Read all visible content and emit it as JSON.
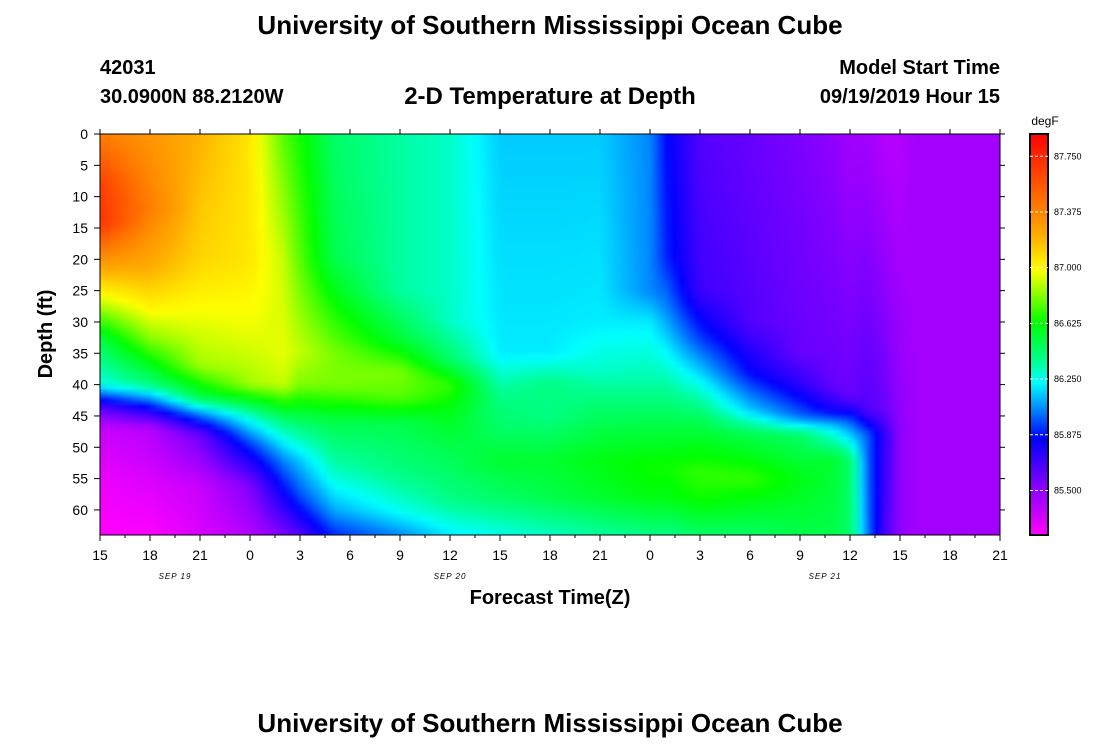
{
  "header": {
    "title": "University of Southern Mississippi Ocean Cube",
    "station_id": "42031",
    "coordinates": "30.0900N 88.2120W",
    "model_start_label": "Model Start Time",
    "model_start_value": "09/19/2019 Hour 15"
  },
  "footer": {
    "title": "University of Southern Mississippi Ocean Cube"
  },
  "chart_data": {
    "type": "heatmap",
    "title": "2-D Temperature at Depth",
    "xlabel": "Forecast Time(Z)",
    "ylabel": "Depth (ft)",
    "x_tick_labels": [
      "15",
      "18",
      "21",
      "0",
      "3",
      "6",
      "9",
      "12",
      "15",
      "18",
      "21",
      "0",
      "3",
      "6",
      "9",
      "12",
      "15",
      "18",
      "21"
    ],
    "x_hours": [
      0,
      3,
      6,
      9,
      12,
      15,
      18,
      21,
      24,
      27,
      30,
      33,
      36,
      39,
      42,
      45,
      48,
      51,
      54
    ],
    "date_labels": [
      {
        "text": "SEP 19",
        "hour": 4.5
      },
      {
        "text": "SEP 20",
        "hour": 21
      },
      {
        "text": "SEP 21",
        "hour": 43.5
      }
    ],
    "y_ticks": [
      0,
      5,
      10,
      15,
      20,
      25,
      30,
      35,
      40,
      45,
      50,
      55,
      60
    ],
    "ylim": [
      0,
      64
    ],
    "colorbar": {
      "unit": "degF",
      "min": 85.2,
      "max": 87.9,
      "tick_values": [
        87.75,
        87.375,
        87.0,
        86.625,
        86.25,
        85.875,
        85.5
      ],
      "tick_labels": [
        "87.750",
        "87.375",
        "87.000",
        "86.625",
        "86.250",
        "85.875",
        "85.500"
      ]
    },
    "columns": [
      {
        "hour": 0,
        "profile": [
          [
            0,
            87.4
          ],
          [
            8,
            87.65
          ],
          [
            14,
            87.7
          ],
          [
            22,
            87.2
          ],
          [
            27,
            86.9
          ],
          [
            33,
            86.5
          ],
          [
            40,
            86.25
          ],
          [
            44,
            85.6
          ],
          [
            47,
            85.35
          ],
          [
            55,
            85.25
          ],
          [
            64,
            85.2
          ]
        ]
      },
      {
        "hour": 3,
        "profile": [
          [
            0,
            87.3
          ],
          [
            12,
            87.4
          ],
          [
            22,
            87.2
          ],
          [
            28,
            87.0
          ],
          [
            33,
            86.8
          ],
          [
            40,
            86.4
          ],
          [
            44,
            85.8
          ],
          [
            47,
            85.4
          ],
          [
            55,
            85.3
          ],
          [
            64,
            85.2
          ]
        ]
      },
      {
        "hour": 6,
        "profile": [
          [
            0,
            87.2
          ],
          [
            20,
            87.1
          ],
          [
            30,
            86.95
          ],
          [
            37,
            86.85
          ],
          [
            42,
            86.5
          ],
          [
            45,
            86.0
          ],
          [
            48,
            85.6
          ],
          [
            56,
            85.35
          ],
          [
            64,
            85.3
          ]
        ]
      },
      {
        "hour": 9,
        "profile": [
          [
            0,
            87.05
          ],
          [
            20,
            87.05
          ],
          [
            32,
            86.95
          ],
          [
            40,
            86.85
          ],
          [
            45,
            86.3
          ],
          [
            50,
            85.9
          ],
          [
            56,
            85.55
          ],
          [
            64,
            85.4
          ]
        ]
      },
      {
        "hour": 11,
        "profile": [
          [
            0,
            86.75
          ],
          [
            20,
            86.9
          ],
          [
            35,
            86.95
          ],
          [
            40,
            86.9
          ],
          [
            46,
            86.4
          ],
          [
            52,
            86.05
          ],
          [
            58,
            85.8
          ],
          [
            64,
            85.55
          ]
        ]
      },
      {
        "hour": 12,
        "profile": [
          [
            0,
            86.65
          ],
          [
            20,
            86.75
          ],
          [
            35,
            86.9
          ],
          [
            40,
            86.8
          ],
          [
            46,
            86.45
          ],
          [
            52,
            86.15
          ],
          [
            58,
            85.95
          ],
          [
            64,
            85.65
          ]
        ]
      },
      {
        "hour": 14,
        "profile": [
          [
            0,
            86.45
          ],
          [
            20,
            86.5
          ],
          [
            35,
            86.8
          ],
          [
            40,
            86.8
          ],
          [
            46,
            86.5
          ],
          [
            54,
            86.3
          ],
          [
            60,
            86.1
          ],
          [
            64,
            85.9
          ]
        ]
      },
      {
        "hour": 18,
        "profile": [
          [
            0,
            86.35
          ],
          [
            25,
            86.35
          ],
          [
            33,
            86.55
          ],
          [
            38,
            86.8
          ],
          [
            42,
            86.75
          ],
          [
            46,
            86.5
          ],
          [
            54,
            86.4
          ],
          [
            60,
            86.25
          ],
          [
            64,
            86.05
          ]
        ]
      },
      {
        "hour": 21,
        "profile": [
          [
            0,
            86.3
          ],
          [
            30,
            86.3
          ],
          [
            36,
            86.45
          ],
          [
            40,
            86.7
          ],
          [
            44,
            86.6
          ],
          [
            50,
            86.5
          ],
          [
            58,
            86.4
          ],
          [
            64,
            86.2
          ]
        ]
      },
      {
        "hour": 24,
        "profile": [
          [
            0,
            86.15
          ],
          [
            35,
            86.2
          ],
          [
            42,
            86.4
          ],
          [
            47,
            86.45
          ],
          [
            52,
            86.55
          ],
          [
            58,
            86.45
          ],
          [
            64,
            86.25
          ]
        ]
      },
      {
        "hour": 27,
        "profile": [
          [
            0,
            86.15
          ],
          [
            35,
            86.2
          ],
          [
            40,
            86.4
          ],
          [
            45,
            86.4
          ],
          [
            52,
            86.55
          ],
          [
            58,
            86.5
          ],
          [
            64,
            86.3
          ]
        ]
      },
      {
        "hour": 30,
        "profile": [
          [
            0,
            86.15
          ],
          [
            30,
            86.2
          ],
          [
            38,
            86.3
          ],
          [
            44,
            86.45
          ],
          [
            52,
            86.6
          ],
          [
            58,
            86.55
          ],
          [
            64,
            86.35
          ]
        ]
      },
      {
        "hour": 33,
        "profile": [
          [
            0,
            86.05
          ],
          [
            25,
            86.05
          ],
          [
            30,
            86.2
          ],
          [
            40,
            86.35
          ],
          [
            46,
            86.5
          ],
          [
            53,
            86.65
          ],
          [
            58,
            86.6
          ],
          [
            64,
            86.4
          ]
        ]
      },
      {
        "hour": 34,
        "profile": [
          [
            0,
            85.85
          ],
          [
            20,
            85.9
          ],
          [
            28,
            86.05
          ],
          [
            38,
            86.3
          ],
          [
            46,
            86.5
          ],
          [
            53,
            86.65
          ],
          [
            58,
            86.6
          ],
          [
            64,
            86.4
          ]
        ]
      },
      {
        "hour": 36,
        "profile": [
          [
            0,
            85.65
          ],
          [
            25,
            85.7
          ],
          [
            33,
            85.95
          ],
          [
            40,
            86.25
          ],
          [
            46,
            86.5
          ],
          [
            54,
            86.7
          ],
          [
            58,
            86.65
          ],
          [
            64,
            86.45
          ]
        ]
      },
      {
        "hour": 39,
        "profile": [
          [
            0,
            85.6
          ],
          [
            30,
            85.65
          ],
          [
            38,
            85.85
          ],
          [
            44,
            86.15
          ],
          [
            48,
            86.5
          ],
          [
            55,
            86.7
          ],
          [
            64,
            86.45
          ]
        ]
      },
      {
        "hour": 42,
        "profile": [
          [
            0,
            85.55
          ],
          [
            35,
            85.6
          ],
          [
            40,
            85.75
          ],
          [
            45,
            86.0
          ],
          [
            48,
            86.45
          ],
          [
            55,
            86.6
          ],
          [
            64,
            86.5
          ]
        ]
      },
      {
        "hour": 44,
        "profile": [
          [
            0,
            85.5
          ],
          [
            40,
            85.6
          ],
          [
            44,
            85.8
          ],
          [
            47,
            86.2
          ],
          [
            52,
            86.55
          ],
          [
            64,
            86.5
          ]
        ]
      },
      {
        "hour": 45,
        "profile": [
          [
            0,
            85.45
          ],
          [
            42,
            85.6
          ],
          [
            46,
            86.0
          ],
          [
            52,
            86.45
          ],
          [
            64,
            86.45
          ]
        ]
      },
      {
        "hour": 46,
        "profile": [
          [
            0,
            85.45
          ],
          [
            44,
            85.65
          ],
          [
            48,
            86.0
          ],
          [
            64,
            86.05
          ]
        ]
      },
      {
        "hour": 47,
        "profile": [
          [
            0,
            85.4
          ],
          [
            44,
            85.6
          ],
          [
            48,
            85.75
          ],
          [
            64,
            85.7
          ]
        ]
      },
      {
        "hour": 48,
        "profile": [
          [
            0,
            85.4
          ],
          [
            46,
            85.5
          ],
          [
            64,
            85.5
          ]
        ]
      },
      {
        "hour": 49,
        "profile": [
          [
            0,
            85.45
          ],
          [
            64,
            85.45
          ]
        ]
      },
      {
        "hour": 51,
        "profile": [
          [
            0,
            85.45
          ],
          [
            64,
            85.45
          ]
        ]
      },
      {
        "hour": 54,
        "profile": [
          [
            0,
            85.45
          ],
          [
            64,
            85.45
          ]
        ]
      }
    ]
  }
}
